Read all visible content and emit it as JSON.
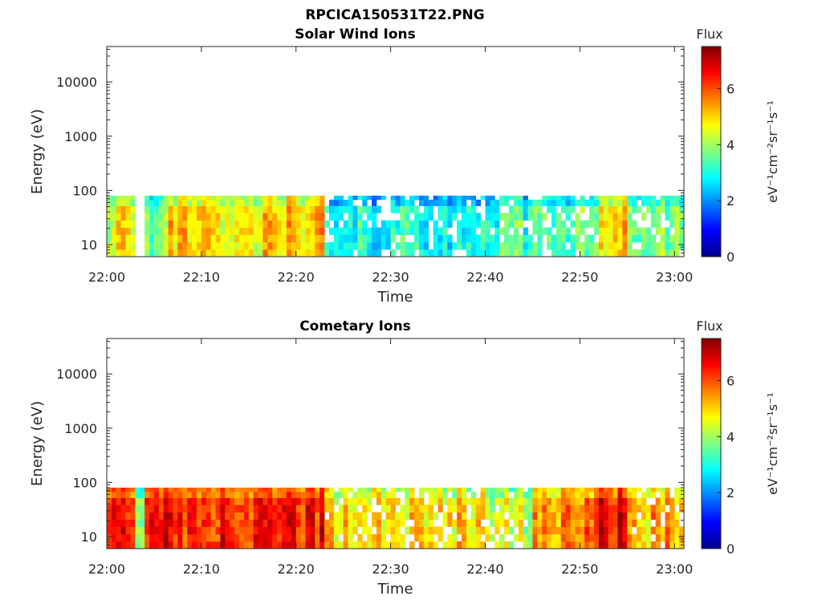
{
  "figure": {
    "filename": "RPCICA150531T22.PNG"
  },
  "chart_data": [
    {
      "type": "heatmap",
      "title": "Solar Wind Ions",
      "xlabel": "Time",
      "ylabel": "Energy (eV)",
      "x_ticks": [
        "22:00",
        "22:10",
        "22:20",
        "22:30",
        "22:40",
        "22:50",
        "23:00"
      ],
      "xlim_minutes": [
        0,
        61
      ],
      "y_scale": "log",
      "y_ticks": [
        10,
        100,
        1000,
        10000
      ],
      "y_tick_labels": [
        "10",
        "100",
        "1000",
        "10000"
      ],
      "ylim": [
        6,
        45000
      ],
      "data_energy_range": [
        6,
        80
      ],
      "colorbar": {
        "title": "Flux",
        "label": "eV⁻¹cm⁻²sr⁻¹s⁻¹",
        "range": [
          0,
          7.5
        ],
        "ticks": [
          0,
          2,
          4,
          6
        ],
        "colormap": "jet"
      },
      "energy_bin_centers": [
        7,
        9.5,
        13,
        18,
        24,
        33,
        45,
        60,
        76
      ],
      "time_profile": {
        "segments": [
          {
            "t": [
              0,
              3
            ],
            "level": 4.6
          },
          {
            "t": [
              3,
              4
            ],
            "level": null
          },
          {
            "t": [
              4,
              6
            ],
            "level": 3.6
          },
          {
            "t": [
              6,
              17
            ],
            "level": 4.9
          },
          {
            "t": [
              17,
              23
            ],
            "level": 5.1
          },
          {
            "t": [
              23,
              40
            ],
            "level": 3.0,
            "intermittent": true
          },
          {
            "t": [
              40,
              52
            ],
            "level": 3.3,
            "intermittent": true
          },
          {
            "t": [
              52,
              55
            ],
            "level": 5.0
          },
          {
            "t": [
              55,
              61
            ],
            "level": 3.6,
            "intermittent": true
          }
        ]
      }
    },
    {
      "type": "heatmap",
      "title": "Cometary Ions",
      "xlabel": "Time",
      "ylabel": "Energy (eV)",
      "x_ticks": [
        "22:00",
        "22:10",
        "22:20",
        "22:30",
        "22:40",
        "22:50",
        "23:00"
      ],
      "xlim_minutes": [
        0,
        61
      ],
      "y_scale": "log",
      "y_ticks": [
        10,
        100,
        1000,
        10000
      ],
      "y_tick_labels": [
        "10",
        "100",
        "1000",
        "10000"
      ],
      "ylim": [
        6,
        45000
      ],
      "data_energy_range": [
        6,
        80
      ],
      "colorbar": {
        "title": "Flux",
        "label": "eV⁻¹cm⁻²sr⁻¹s⁻¹",
        "range": [
          0,
          7.5
        ],
        "ticks": [
          0,
          2,
          4,
          6
        ],
        "colormap": "jet"
      },
      "energy_bin_centers": [
        7,
        9.5,
        13,
        18,
        24,
        33,
        45,
        60,
        76
      ],
      "time_profile": {
        "segments": [
          {
            "t": [
              0,
              3
            ],
            "level": 6.3
          },
          {
            "t": [
              3,
              4
            ],
            "level": 4.2
          },
          {
            "t": [
              4,
              23
            ],
            "level": 6.4
          },
          {
            "t": [
              23,
              40
            ],
            "level": 5.0,
            "intermittent": true
          },
          {
            "t": [
              40,
              45
            ],
            "level": 4.2,
            "intermittent": true
          },
          {
            "t": [
              45,
              52
            ],
            "level": 5.6
          },
          {
            "t": [
              52,
              55
            ],
            "level": 6.6
          },
          {
            "t": [
              55,
              61
            ],
            "level": 5.3,
            "intermittent": true
          }
        ]
      }
    }
  ]
}
